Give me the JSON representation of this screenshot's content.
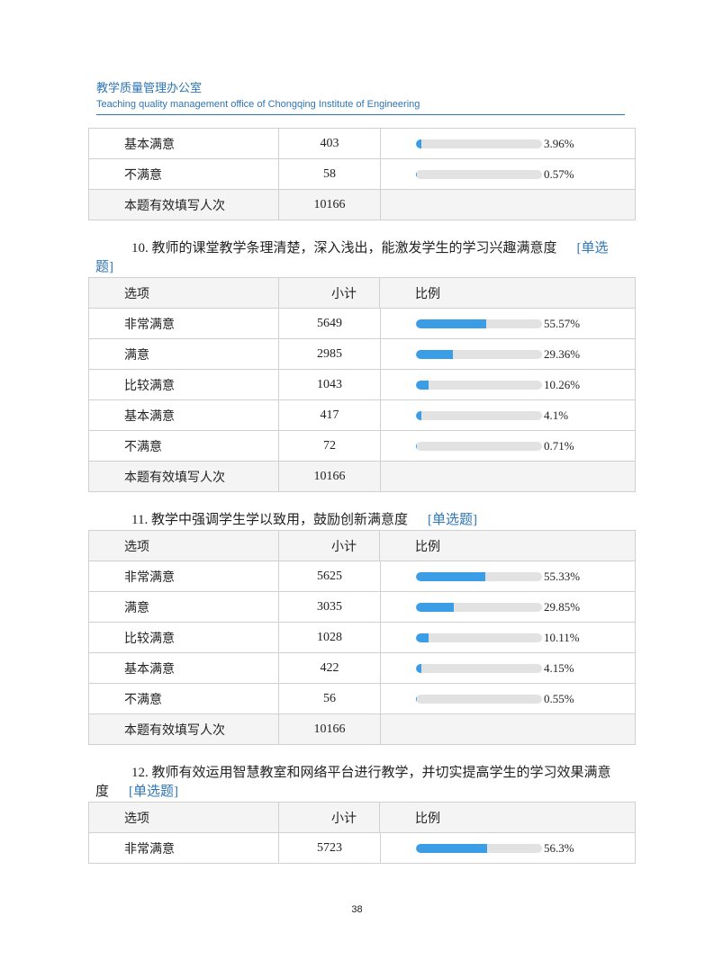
{
  "header": {
    "title": "教学质量管理办公室",
    "subtitle": "Teaching quality management office of Chongqing Institute of Engineering"
  },
  "sections": [
    {
      "rows": [
        {
          "option": "基本满意",
          "count": 403,
          "percent": 3.96,
          "percent_label": "3.96%"
        },
        {
          "option": "不满意",
          "count": 58,
          "percent": 0.57,
          "percent_label": "0.57%"
        }
      ],
      "total": {
        "label": "本题有效填写人次",
        "count": 10166
      }
    },
    {
      "question": "10. 教师的课堂教学条理清楚，深入浅出，能激发学生的学习兴趣满意度",
      "tag": "[单选题]",
      "header": [
        "选项",
        "小计",
        "比例"
      ],
      "rows": [
        {
          "option": "非常满意",
          "count": 5649,
          "percent": 55.57,
          "percent_label": "55.57%"
        },
        {
          "option": "满意",
          "count": 2985,
          "percent": 29.36,
          "percent_label": "29.36%"
        },
        {
          "option": "比较满意",
          "count": 1043,
          "percent": 10.26,
          "percent_label": "10.26%"
        },
        {
          "option": "基本满意",
          "count": 417,
          "percent": 4.1,
          "percent_label": "4.1%"
        },
        {
          "option": "不满意",
          "count": 72,
          "percent": 0.71,
          "percent_label": "0.71%"
        }
      ],
      "total": {
        "label": "本题有效填写人次",
        "count": 10166
      }
    },
    {
      "question": "11. 教学中强调学生学以致用，鼓励创新满意度",
      "tag": "[单选题]",
      "header": [
        "选项",
        "小计",
        "比例"
      ],
      "rows": [
        {
          "option": "非常满意",
          "count": 5625,
          "percent": 55.33,
          "percent_label": "55.33%"
        },
        {
          "option": "满意",
          "count": 3035,
          "percent": 29.85,
          "percent_label": "29.85%"
        },
        {
          "option": "比较满意",
          "count": 1028,
          "percent": 10.11,
          "percent_label": "10.11%"
        },
        {
          "option": "基本满意",
          "count": 422,
          "percent": 4.15,
          "percent_label": "4.15%"
        },
        {
          "option": "不满意",
          "count": 56,
          "percent": 0.55,
          "percent_label": "0.55%"
        }
      ],
      "total": {
        "label": "本题有效填写人次",
        "count": 10166
      }
    },
    {
      "question": "12. 教师有效运用智慧教室和网络平台进行教学，并切实提高学生的学习效果满意度",
      "tag": "[单选题]",
      "header": [
        "选项",
        "小计",
        "比例"
      ],
      "rows": [
        {
          "option": "非常满意",
          "count": 5723,
          "percent": 56.3,
          "percent_label": "56.3%"
        }
      ]
    }
  ],
  "page_number": "38"
}
